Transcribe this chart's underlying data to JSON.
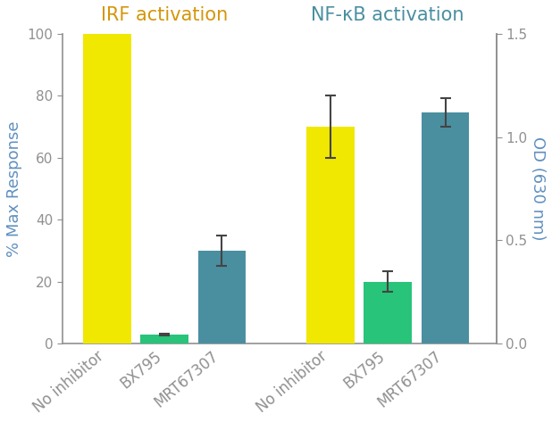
{
  "irf_values": [
    100,
    3,
    30
  ],
  "irf_errors": [
    0,
    0.3,
    5
  ],
  "nfkb_od_values": [
    1.05,
    0.3,
    1.12
  ],
  "nfkb_od_errors": [
    0.15,
    0.05,
    0.07
  ],
  "categories": [
    "No inhibitor",
    "BX795",
    "MRT67307"
  ],
  "bar_colors": [
    "#f0e800",
    "#28c47a",
    "#4a8fa0"
  ],
  "irf_title": "IRF activation",
  "nfkb_title": "NF-κB activation",
  "irf_title_color": "#d4960a",
  "nfkb_title_color": "#4a8fa0",
  "ylabel_left": "% Max Response",
  "ylabel_right": "OD (630 nm)",
  "ylim_left": [
    0,
    100
  ],
  "ylim_right": [
    0.0,
    1.5
  ],
  "yticks_left": [
    0,
    20,
    40,
    60,
    80,
    100
  ],
  "yticks_right": [
    0.0,
    0.5,
    1.0,
    1.5
  ],
  "background_color": "#ffffff",
  "axis_color": "#909090",
  "tick_label_color": "#909090",
  "ylabel_color": "#6090c0",
  "bar_width": 0.75,
  "title_fontsize": 15,
  "axis_label_fontsize": 13,
  "tick_fontsize": 11,
  "xtick_fontsize": 12
}
